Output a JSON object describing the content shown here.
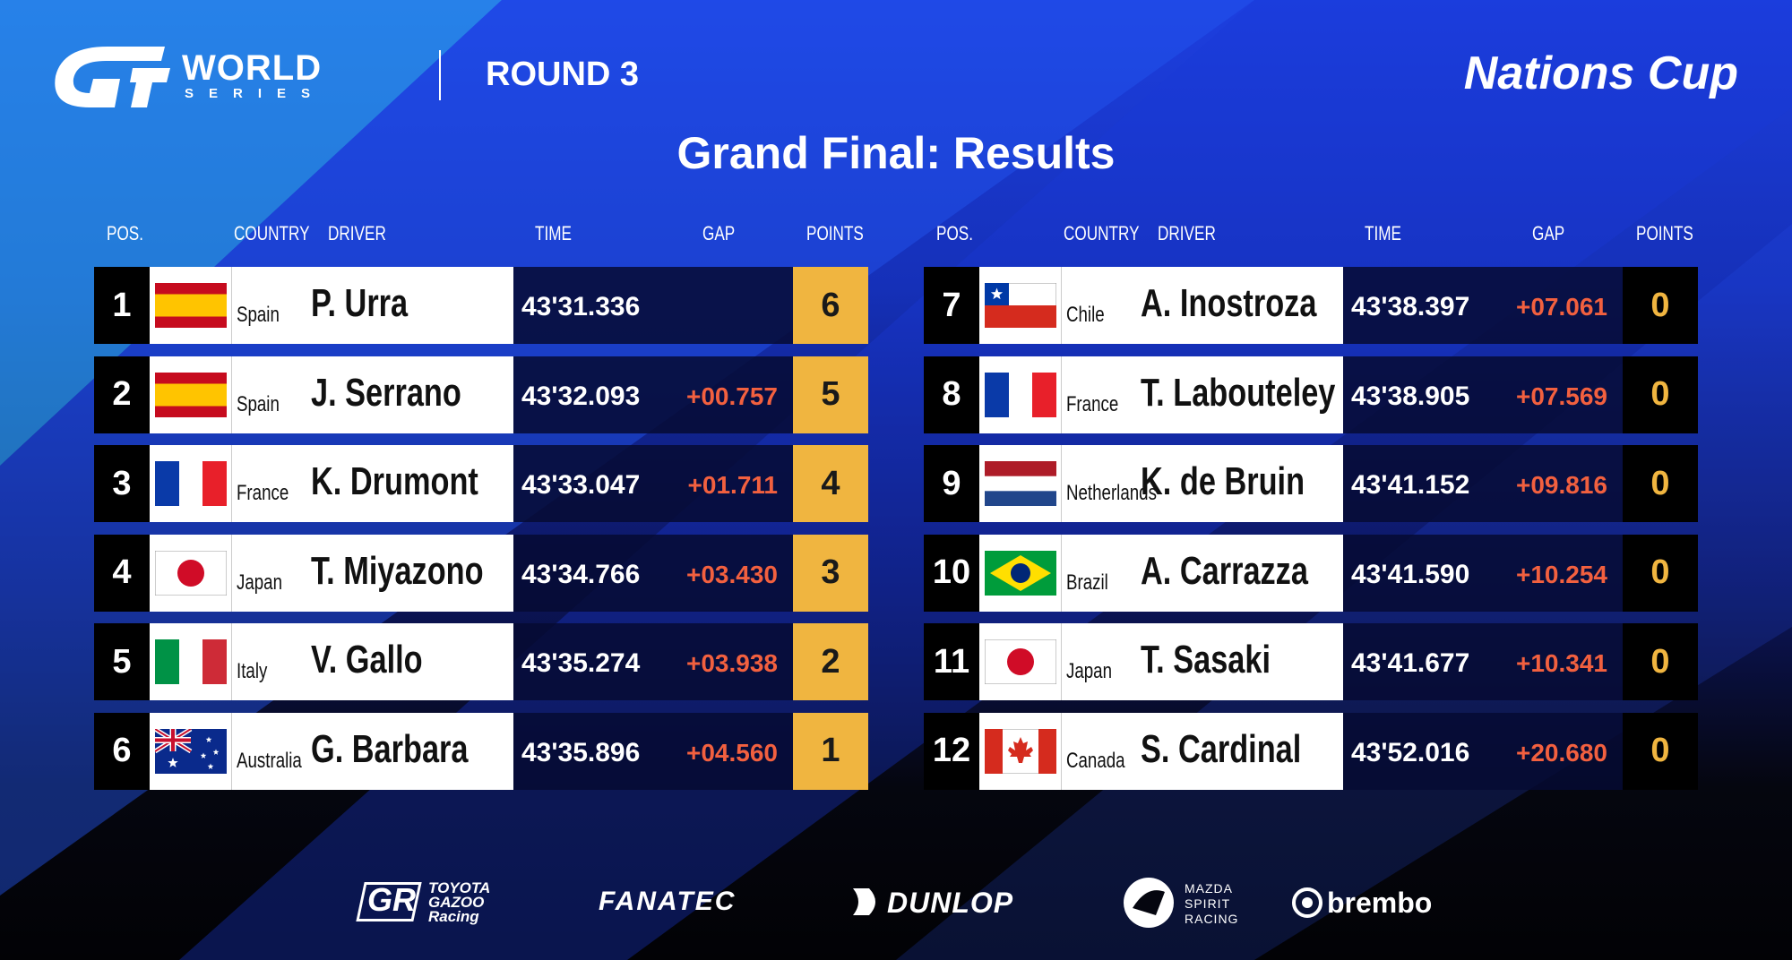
{
  "header": {
    "logo": {
      "name": "WORLD",
      "sub": "SERIES"
    },
    "round": "ROUND 3",
    "event": "Nations Cup",
    "title": "Grand Final: Results"
  },
  "table": {
    "columns": [
      "POS.",
      "COUNTRY",
      "DRIVER",
      "TIME",
      "GAP",
      "POINTS"
    ],
    "rows": [
      {
        "pos": 1,
        "country": "Spain",
        "driver": "P. Urra",
        "time": "43'31.336",
        "points": 6
      },
      {
        "pos": 2,
        "country": "Spain",
        "driver": "J. Serrano",
        "time": "43'32.093",
        "gap": "+00.757",
        "points": 5
      },
      {
        "pos": 3,
        "country": "France",
        "driver": "K. Drumont",
        "time": "43'33.047",
        "gap": "+01.711",
        "points": 4
      },
      {
        "pos": 4,
        "country": "Japan",
        "driver": "T. Miyazono",
        "time": "43'34.766",
        "gap": "+03.430",
        "points": 3
      },
      {
        "pos": 5,
        "country": "Italy",
        "driver": "V. Gallo",
        "time": "43'35.274",
        "gap": "+03.938",
        "points": 2
      },
      {
        "pos": 6,
        "country": "Australia",
        "driver": "G. Barbara",
        "time": "43'35.896",
        "gap": "+04.560",
        "points": 1
      },
      {
        "pos": 7,
        "country": "Chile",
        "driver": "A. Inostroza",
        "time": "43'38.397",
        "gap": "+07.061",
        "points": 0
      },
      {
        "pos": 8,
        "country": "France",
        "driver": "T. Labouteley",
        "time": "43'38.905",
        "gap": "+07.569",
        "points": 0
      },
      {
        "pos": 9,
        "country": "Netherlands",
        "driver": "K. de Bruin",
        "time": "43'41.152",
        "gap": "+09.816",
        "points": 0
      },
      {
        "pos": 10,
        "country": "Brazil",
        "driver": "A. Carrazza",
        "time": "43'41.590",
        "gap": "+10.254",
        "points": 0
      },
      {
        "pos": 11,
        "country": "Japan",
        "driver": "T. Sasaki",
        "time": "43'41.677",
        "gap": "+10.341",
        "points": 0
      },
      {
        "pos": 12,
        "country": "Canada",
        "driver": "S. Cardinal",
        "time": "43'52.016",
        "gap": "+20.680",
        "points": 0
      }
    ]
  },
  "sponsors": {
    "toyota": {
      "mark": "GR",
      "lines": [
        "TOYOTA",
        "GAZOO",
        "Racing"
      ]
    },
    "fanatec": "FANATEC",
    "dunlop": "DUNLOP",
    "mazda": [
      "MAZDA",
      "SPIRIT",
      "RACING"
    ],
    "brembo": "brembo"
  }
}
